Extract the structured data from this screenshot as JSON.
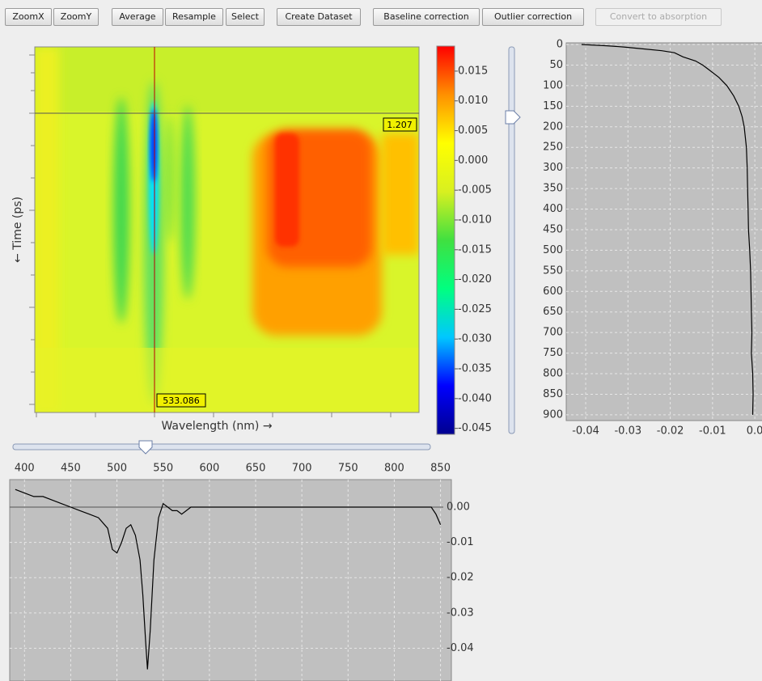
{
  "toolbar": {
    "buttons": [
      {
        "label": "ZoomX",
        "enabled": true
      },
      {
        "label": "ZoomY",
        "enabled": true
      },
      {
        "label": "Average",
        "enabled": true
      },
      {
        "label": "Resample",
        "enabled": true
      },
      {
        "label": "Select",
        "enabled": true
      },
      {
        "label": "Create Dataset",
        "enabled": true
      },
      {
        "label": "Baseline correction",
        "enabled": true
      },
      {
        "label": "Outlier correction",
        "enabled": true
      },
      {
        "label": "Convert to absorption",
        "enabled": false
      }
    ]
  },
  "heatmap": {
    "xlabel": "Wavelength (nm) →",
    "ylabel": "← Time (ps)",
    "cursor_wavelength": 533.086,
    "cursor_time": 1.207
  },
  "chart_data": [
    {
      "type": "colorbar",
      "colors": [
        "#00008f",
        "#0000ff",
        "#00c8ff",
        "#00ff80",
        "#40e040",
        "#d8f020",
        "#ffff00",
        "#ff9000",
        "#ff0000"
      ],
      "ylim": [
        -0.046,
        0.0192
      ],
      "yticks": [
        0.015,
        {
          "value": 0.01,
          "label": "0.010"
        },
        0.005,
        {
          "value": 0,
          "label": "0.000"
        },
        -0.005,
        {
          "value": -0.01,
          "label": "-0.010"
        },
        -0.015,
        {
          "value": -0.02,
          "label": "-0.020"
        },
        -0.025,
        {
          "value": -0.03,
          "label": "-0.030"
        },
        -0.035,
        {
          "value": -0.04,
          "label": "-0.040"
        },
        -0.045
      ]
    },
    {
      "type": "line",
      "orientation": "vertical",
      "color": "#000000",
      "grid": true,
      "y_inverted": true,
      "x": [
        0,
        3,
        6,
        10,
        15,
        20,
        30,
        40,
        50,
        60,
        80,
        100,
        125,
        150,
        175,
        200,
        250,
        300,
        350,
        400,
        450,
        500,
        550,
        600,
        650,
        700,
        750,
        800,
        850,
        900
      ],
      "values": [
        -0.041,
        -0.035,
        -0.031,
        -0.027,
        -0.022,
        -0.019,
        -0.017,
        -0.014,
        -0.0123,
        -0.011,
        -0.0085,
        -0.0066,
        -0.005,
        -0.0038,
        -0.003,
        -0.0025,
        -0.002,
        -0.0018,
        -0.0017,
        -0.0016,
        -0.0015,
        -0.0012,
        -0.001,
        -0.0009,
        -0.0008,
        -0.0007,
        -0.0008,
        -0.0005,
        -0.0004,
        -0.0005
      ],
      "xlim": [
        -4,
        914
      ],
      "xticks": [
        0,
        50,
        100,
        150,
        200,
        250,
        300,
        350,
        400,
        450,
        500,
        550,
        600,
        650,
        700,
        750,
        800,
        850,
        900
      ],
      "ylim": [
        -0.0446,
        0.0017
      ],
      "yticks": [
        -0.04,
        -0.03,
        -0.02,
        -0.01,
        {
          "value": 0,
          "label": "0.0"
        }
      ]
    },
    {
      "type": "line",
      "orientation": "horizontal",
      "color": "#000000",
      "grid": true,
      "x": [
        390,
        400,
        410,
        420,
        430,
        440,
        450,
        460,
        470,
        480,
        490,
        495,
        500,
        505,
        510,
        515,
        520,
        525,
        528,
        531,
        533,
        536,
        540,
        545,
        550,
        555,
        560,
        565,
        570,
        575,
        580,
        600,
        650,
        700,
        750,
        800,
        830,
        840,
        845,
        850
      ],
      "values": [
        0.005,
        0.004,
        0.003,
        0.003,
        0.002,
        0.001,
        0.0,
        -0.001,
        -0.002,
        -0.003,
        -0.006,
        -0.012,
        -0.013,
        -0.01,
        -0.006,
        -0.005,
        -0.008,
        -0.015,
        -0.025,
        -0.038,
        -0.046,
        -0.035,
        -0.015,
        -0.003,
        0.001,
        0.0,
        -0.001,
        -0.001,
        -0.002,
        -0.001,
        0.0,
        0.0,
        0.0,
        0.0,
        0.0,
        0.0,
        0.0,
        0.0,
        -0.002,
        -0.005
      ],
      "xlim": [
        384,
        853
      ],
      "xticks": [
        400,
        450,
        500,
        550,
        600,
        650,
        700,
        750,
        800,
        850
      ],
      "ylim": [
        -0.0493,
        0.0078
      ],
      "yticks": [
        {
          "value": 0,
          "label": "0.00"
        },
        -0.01,
        -0.02,
        -0.03,
        -0.04
      ]
    }
  ]
}
